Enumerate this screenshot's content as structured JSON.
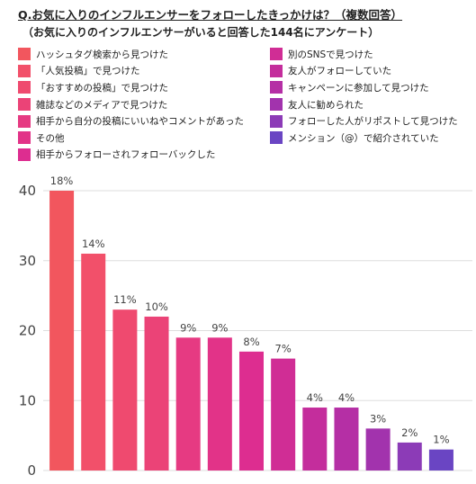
{
  "header": {
    "title": "Q.お気に入りのインフルエンサーをフォローしたきっかけは？（複数回答）",
    "subtitle": "（お気に入りのインフルエンサーがいると回答した144名にアンケート）"
  },
  "legend": {
    "column1": [
      {
        "label": "ハッシュタグ検索から見つけた",
        "color": "#f2565e"
      },
      {
        "label": "「人気投稿」で見つけた",
        "color": "#f2506a"
      },
      {
        "label": "「おすすめの投稿」で見つけた",
        "color": "#ef4a6f"
      },
      {
        "label": "雑誌などのメディアで見つけた",
        "color": "#eb4377"
      },
      {
        "label": "相手から自分の投稿にいいねやコメントがあった",
        "color": "#e63a82"
      },
      {
        "label": "その他",
        "color": "#e23388"
      },
      {
        "label": "相手からフォローされフォローバックした",
        "color": "#dd2d90"
      }
    ],
    "column2": [
      {
        "label": "別のSNSで見つけた",
        "color": "#d02d95"
      },
      {
        "label": "友人がフォローしていた",
        "color": "#c42d9c"
      },
      {
        "label": "キャンペーンに参加して見つけた",
        "color": "#b52fa5"
      },
      {
        "label": "友人に勧められた",
        "color": "#a233ad"
      },
      {
        "label": "フォローした人がリポストして見つけた",
        "color": "#8c3bb7"
      },
      {
        "label": "メンション（@）で紹介されていた",
        "color": "#6a45c3"
      }
    ]
  },
  "chart_data": {
    "type": "bar",
    "title": "Q.お気に入りのインフルエンサーをフォローしたきっかけは？（複数回答）",
    "subtitle": "（お気に入りのインフルエンサーがいると回答した144名にアンケート）",
    "categories": [
      "ハッシュタグ検索から見つけた",
      "「人気投稿」で見つけた",
      "「おすすめの投稿」で見つけた",
      "雑誌などのメディアで見つけた",
      "相手から自分の投稿にいいねやコメントがあった",
      "その他",
      "相手からフォローされフォローバックした",
      "別のSNSで見つけた",
      "友人がフォローしていた",
      "キャンペーンに参加して見つけた",
      "友人に勧められた",
      "フォローした人がリポストして見つけた",
      "メンション（@）で紹介されていた"
    ],
    "values": [
      40,
      31,
      23,
      22,
      19,
      19,
      17,
      16,
      9,
      9,
      6,
      4,
      3
    ],
    "data_labels": [
      "18%",
      "14%",
      "11%",
      "10%",
      "9%",
      "9%",
      "8%",
      "7%",
      "4%",
      "4%",
      "3%",
      "2%",
      "1%"
    ],
    "colors": [
      "#f2565e",
      "#f2506a",
      "#ef4a6f",
      "#eb4377",
      "#e63a82",
      "#e23388",
      "#dd2d90",
      "#d02d95",
      "#c42d9c",
      "#b52fa5",
      "#a233ad",
      "#8c3bb7",
      "#6a45c3"
    ],
    "yticks": [
      0,
      10,
      20,
      30,
      40
    ],
    "ylim": [
      0,
      40
    ],
    "grid": true,
    "grid_color": "#dddddd",
    "legend_position": "top"
  }
}
